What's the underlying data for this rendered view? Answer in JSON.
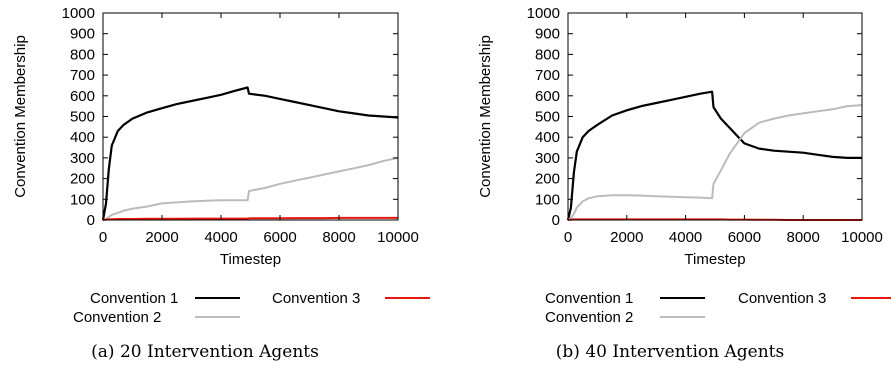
{
  "chart_data": [
    {
      "type": "line",
      "caption": "(a) 20 Intervention Agents",
      "xlabel": "Timestep",
      "ylabel": "Convention Membership",
      "xlim": [
        0,
        10000
      ],
      "ylim": [
        0,
        1000
      ],
      "xticks": [
        "0",
        "2000",
        "4000",
        "6000",
        "8000",
        "10000"
      ],
      "yticks": [
        "0",
        "100",
        "200",
        "300",
        "400",
        "500",
        "600",
        "700",
        "800",
        "900",
        "1000"
      ],
      "grid": false,
      "legend": "bottom",
      "x": [
        0,
        100,
        200,
        300,
        500,
        700,
        1000,
        1500,
        2000,
        2500,
        3000,
        3500,
        4000,
        4500,
        4900,
        4950,
        5500,
        6000,
        6500,
        7000,
        7500,
        8000,
        8500,
        9000,
        9500,
        10000
      ],
      "series": [
        {
          "name": "Convention 1",
          "color": "#000000",
          "values": [
            0,
            80,
            250,
            360,
            430,
            460,
            490,
            520,
            540,
            560,
            575,
            590,
            605,
            625,
            640,
            610,
            600,
            585,
            570,
            555,
            540,
            525,
            515,
            505,
            500,
            495
          ]
        },
        {
          "name": "Convention 2",
          "color": "#bbbbbb",
          "values": [
            0,
            5,
            15,
            25,
            35,
            45,
            55,
            65,
            80,
            85,
            90,
            93,
            95,
            95,
            95,
            140,
            155,
            175,
            190,
            205,
            220,
            235,
            250,
            265,
            285,
            300
          ]
        },
        {
          "name": "Convention 3",
          "color": "#e8160c",
          "values": [
            0,
            2,
            3,
            4,
            5,
            5,
            5,
            6,
            6,
            6,
            7,
            7,
            7,
            7,
            7,
            8,
            8,
            8,
            9,
            9,
            9,
            10,
            10,
            10,
            10,
            10
          ]
        }
      ]
    },
    {
      "type": "line",
      "caption": "(b) 40 Intervention Agents",
      "xlabel": "Timestep",
      "ylabel": "Convention Membership",
      "xlim": [
        0,
        10000
      ],
      "ylim": [
        0,
        1000
      ],
      "xticks": [
        "0",
        "2000",
        "4000",
        "6000",
        "8000",
        "10000"
      ],
      "yticks": [
        "0",
        "100",
        "200",
        "300",
        "400",
        "500",
        "600",
        "700",
        "800",
        "900",
        "1000"
      ],
      "grid": false,
      "legend": "bottom",
      "x": [
        0,
        100,
        200,
        300,
        500,
        700,
        1000,
        1500,
        2000,
        2500,
        3000,
        3500,
        4000,
        4500,
        4900,
        4950,
        5200,
        5500,
        5800,
        6000,
        6500,
        7000,
        7500,
        8000,
        8500,
        9000,
        9500,
        10000
      ],
      "series": [
        {
          "name": "Convention 1",
          "color": "#000000",
          "values": [
            0,
            60,
            230,
            330,
            400,
            430,
            460,
            505,
            530,
            550,
            565,
            580,
            595,
            610,
            620,
            545,
            490,
            445,
            400,
            370,
            345,
            335,
            330,
            325,
            315,
            305,
            300,
            300
          ]
        },
        {
          "name": "Convention 2",
          "color": "#bbbbbb",
          "values": [
            0,
            10,
            30,
            60,
            90,
            105,
            115,
            120,
            120,
            118,
            115,
            112,
            110,
            108,
            105,
            175,
            240,
            320,
            380,
            420,
            470,
            490,
            505,
            515,
            525,
            535,
            550,
            555
          ]
        },
        {
          "name": "Convention 3",
          "color": "#e8160c",
          "values": [
            0,
            2,
            3,
            3,
            3,
            3,
            3,
            3,
            3,
            3,
            3,
            3,
            3,
            3,
            3,
            3,
            3,
            2,
            2,
            2,
            1,
            1,
            0,
            0,
            0,
            0,
            0,
            0
          ]
        }
      ]
    }
  ]
}
